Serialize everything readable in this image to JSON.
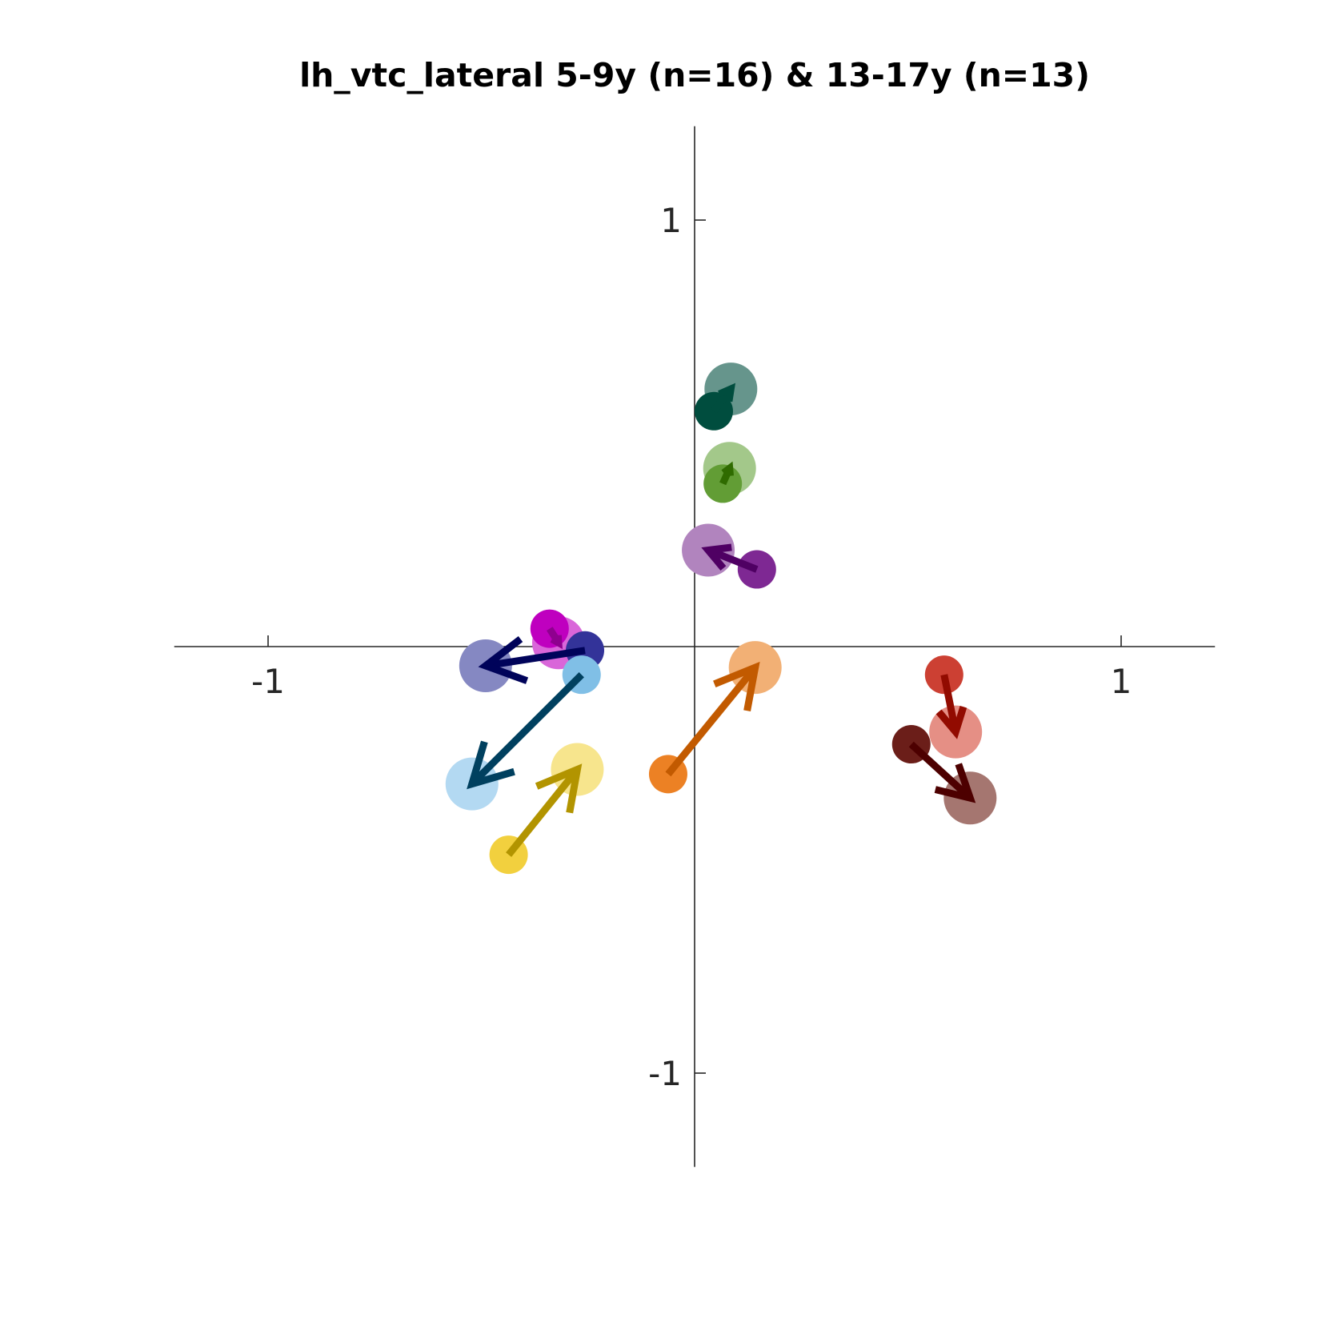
{
  "chart_data": {
    "type": "scatter",
    "title": "lh_vtc_lateral 5-9y (n=16) & 13-17y (n=13)",
    "xlabel": "",
    "ylabel": "",
    "xlim": [
      -1.22,
      1.22
    ],
    "ylim": [
      -1.22,
      1.22
    ],
    "grid": false,
    "legend": "none",
    "x_ticks": [
      {
        "value": -1,
        "label": "-1"
      },
      {
        "value": 1,
        "label": "1"
      }
    ],
    "y_ticks": [
      {
        "value": 1,
        "label": "1"
      },
      {
        "value": -1,
        "label": "-1"
      }
    ],
    "arrows": [
      {
        "from": [
          0.045,
          0.552
        ],
        "to": [
          0.085,
          0.604
        ],
        "from_color": "#004d3e",
        "to_color": "#66958c",
        "arrow_color": "#004d3e"
      },
      {
        "from": [
          0.066,
          0.382
        ],
        "to": [
          0.082,
          0.418
        ],
        "from_color": "#629d35",
        "to_color": "#a3c88a",
        "arrow_color": "#2f6b00"
      },
      {
        "from": [
          0.146,
          0.181
        ],
        "to": [
          0.032,
          0.226
        ],
        "from_color": "#7e2893",
        "to_color": "#b184be",
        "arrow_color": "#4f0063"
      },
      {
        "from": [
          -0.34,
          0.042
        ],
        "to": [
          -0.319,
          0.009
        ],
        "from_color": "#bf00bf",
        "to_color": "#d966d9",
        "arrow_color": "#8f008f"
      },
      {
        "from": [
          -0.257,
          -0.009
        ],
        "to": [
          -0.49,
          -0.045
        ],
        "from_color": "#333399",
        "to_color": "#8588c2",
        "arrow_color": "#00035a"
      },
      {
        "from": [
          -0.265,
          -0.066
        ],
        "to": [
          -0.522,
          -0.322
        ],
        "from_color": "#80bfe6",
        "to_color": "#b3d9f2",
        "arrow_color": "#00405f"
      },
      {
        "from": [
          -0.436,
          -0.488
        ],
        "to": [
          -0.275,
          -0.288
        ],
        "from_color": "#f2d03e",
        "to_color": "#f7e58d",
        "arrow_color": "#b29400"
      },
      {
        "from": [
          -0.062,
          -0.299
        ],
        "to": [
          0.142,
          -0.049
        ],
        "from_color": "#ec8124",
        "to_color": "#f2b075",
        "arrow_color": "#c25a00"
      },
      {
        "from": [
          0.585,
          -0.066
        ],
        "to": [
          0.612,
          -0.2
        ],
        "from_color": "#cc4033",
        "to_color": "#e58f85",
        "arrow_color": "#920b00"
      },
      {
        "from": [
          0.508,
          -0.229
        ],
        "to": [
          0.646,
          -0.355
        ],
        "from_color": "#6b1e19",
        "to_color": "#a57670",
        "arrow_color": "#4d0000"
      }
    ]
  }
}
